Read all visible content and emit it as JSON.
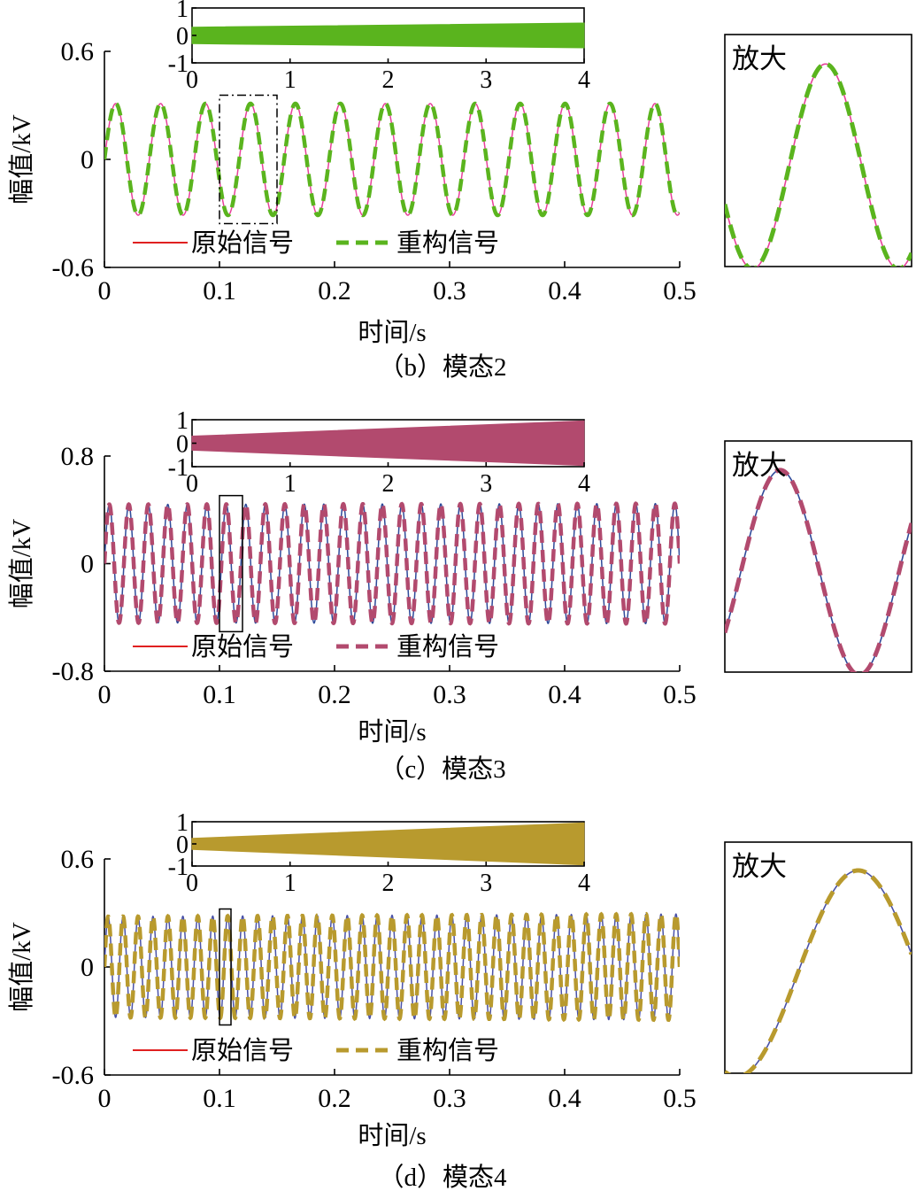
{
  "chart_data": [
    {
      "type": "line",
      "caption": "（b）模态2",
      "xlabel": "时间/s",
      "ylabel": "幅值/kV",
      "xlim": [
        0,
        0.5
      ],
      "ylim": [
        -0.6,
        0.6
      ],
      "x_ticks": [
        "0",
        "0.1",
        "0.2",
        "0.3",
        "0.4",
        "0.5"
      ],
      "y_ticks": [
        "-0.6",
        "0",
        "0.6"
      ],
      "signal": {
        "amplitude": 0.31,
        "frequency_hz": 25.6,
        "amplitude_growth_per_s": 0
      },
      "series": [
        {
          "name": "原始信号",
          "color": "#e8409a",
          "legend_color": "#e02020",
          "style": "solid"
        },
        {
          "name": "重构信号",
          "color": "#5ab41e",
          "style": "dashed"
        }
      ],
      "highlight_window": {
        "x": [
          0.1,
          0.15
        ],
        "style": "dashdot"
      },
      "inset": {
        "xlim": [
          0,
          4
        ],
        "ylim": [
          -1,
          1
        ],
        "x_ticks": [
          "0",
          "1",
          "2",
          "3",
          "4"
        ],
        "y_ticks": [
          "1",
          "0",
          "-1"
        ],
        "color": "#5ab41e",
        "envelope_start": 0.3,
        "envelope_end": 0.45
      },
      "zoom_label": "放大"
    },
    {
      "type": "line",
      "caption": "（c）模态3",
      "xlabel": "时间/s",
      "ylabel": "幅值/kV",
      "xlim": [
        0,
        0.5
      ],
      "ylim": [
        -0.8,
        0.8
      ],
      "x_ticks": [
        "0",
        "0.1",
        "0.2",
        "0.3",
        "0.4",
        "0.5"
      ],
      "y_ticks": [
        "-0.8",
        "0",
        "0.8"
      ],
      "signal": {
        "amplitude": 0.44,
        "frequency_hz": 59,
        "amplitude_growth_per_s": 0.03
      },
      "series": [
        {
          "name": "原始信号",
          "color": "#2f4a9a",
          "legend_color": "#e02020",
          "style": "solid"
        },
        {
          "name": "重构信号",
          "color": "#b24a6e",
          "style": "dashed"
        }
      ],
      "highlight_window": {
        "x": [
          0.1,
          0.12
        ],
        "style": "solid"
      },
      "inset": {
        "xlim": [
          0,
          4
        ],
        "ylim": [
          -1,
          1
        ],
        "x_ticks": [
          "0",
          "1",
          "2",
          "3",
          "4"
        ],
        "y_ticks": [
          "1",
          "0",
          "-1"
        ],
        "color": "#b24a6e",
        "envelope_start": 0.3,
        "envelope_end": 0.95
      },
      "zoom_label": "放大"
    },
    {
      "type": "line",
      "caption": "（d）模态4",
      "xlabel": "时间/s",
      "ylabel": "幅值/kV",
      "xlim": [
        0,
        0.5
      ],
      "ylim": [
        -0.6,
        0.6
      ],
      "x_ticks": [
        "0",
        "0.1",
        "0.2",
        "0.3",
        "0.4",
        "0.5"
      ],
      "y_ticks": [
        "-0.6",
        "0",
        "0.6"
      ],
      "signal": {
        "amplitude": 0.28,
        "frequency_hz": 77,
        "amplitude_growth_per_s": 0.1
      },
      "series": [
        {
          "name": "原始信号",
          "color": "#4a52a8",
          "legend_color": "#e02020",
          "style": "solid"
        },
        {
          "name": "重构信号",
          "color": "#b89a2e",
          "style": "dashed"
        }
      ],
      "highlight_window": {
        "x": [
          0.1,
          0.11
        ],
        "style": "solid"
      },
      "inset": {
        "xlim": [
          0,
          4
        ],
        "ylim": [
          -1,
          1
        ],
        "x_ticks": [
          "0",
          "1",
          "2",
          "3",
          "4"
        ],
        "y_ticks": [
          "1",
          "0",
          "-1"
        ],
        "color": "#b89a2e",
        "envelope_start": 0.25,
        "envelope_end": 0.95
      },
      "zoom_label": "放大"
    }
  ]
}
